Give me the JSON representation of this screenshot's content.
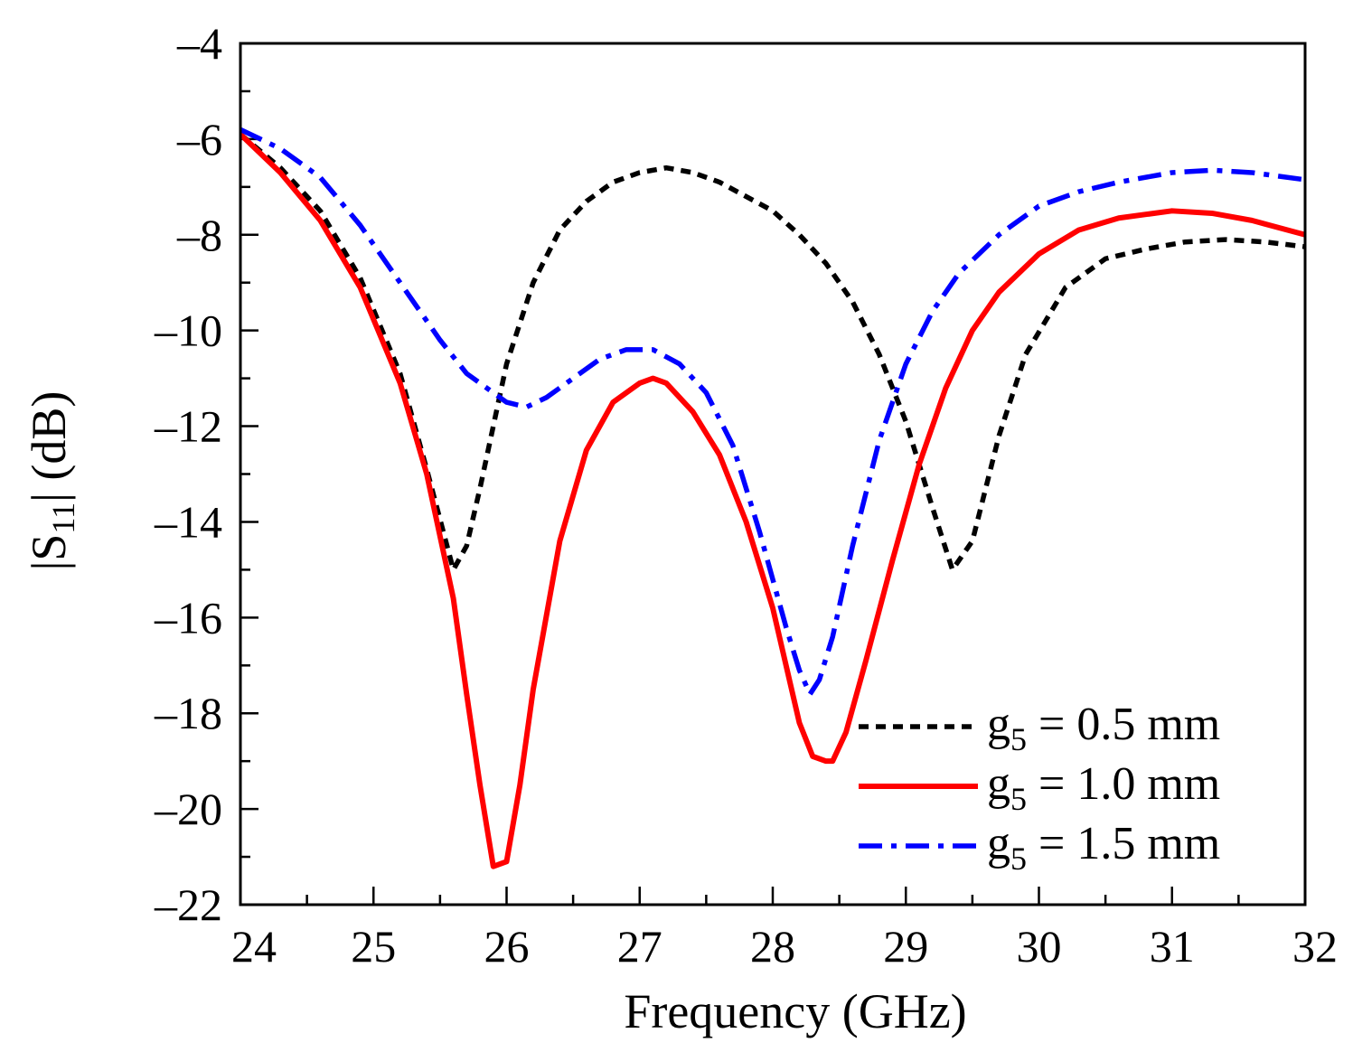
{
  "chart_data": {
    "type": "line",
    "title": "",
    "xlabel": "Frequency (GHz)",
    "ylabel_main": "|S",
    "ylabel_sub": "11",
    "ylabel_tail": "| (dB)",
    "xlim": [
      24,
      32
    ],
    "ylim": [
      -22,
      -4
    ],
    "xticks": [
      24,
      25,
      26,
      27,
      28,
      29,
      30,
      31,
      32
    ],
    "yticks": [
      -4,
      -6,
      -8,
      -10,
      -12,
      -14,
      -16,
      -18,
      -20,
      -22
    ],
    "xtick_labels": [
      "24",
      "25",
      "26",
      "27",
      "28",
      "29",
      "30",
      "31",
      "32"
    ],
    "ytick_labels": [
      "–4",
      "–6",
      "–8",
      "–10",
      "–12",
      "–14",
      "–16",
      "–18",
      "–20",
      "–22"
    ],
    "grid": false,
    "legend_position": "bottom-right",
    "series": [
      {
        "name": "g5 = 0.5 mm",
        "legend_main": "g",
        "legend_sub": "5",
        "legend_tail": " = 0.5 mm",
        "color": "#000000",
        "style": "dotted",
        "x": [
          24,
          24.3,
          24.6,
          24.9,
          25.2,
          25.4,
          25.6,
          25.7,
          25.8,
          25.9,
          26.0,
          26.2,
          26.4,
          26.6,
          26.8,
          27.0,
          27.2,
          27.4,
          27.6,
          27.8,
          28.0,
          28.2,
          28.4,
          28.6,
          28.8,
          29.0,
          29.2,
          29.35,
          29.5,
          29.7,
          29.9,
          30.2,
          30.5,
          30.8,
          31.1,
          31.4,
          31.7,
          32.0
        ],
        "y": [
          -5.9,
          -6.6,
          -7.5,
          -8.9,
          -10.9,
          -12.9,
          -15.0,
          -14.5,
          -13.3,
          -12.0,
          -10.7,
          -9.0,
          -7.9,
          -7.3,
          -6.9,
          -6.7,
          -6.6,
          -6.7,
          -6.9,
          -7.2,
          -7.5,
          -8.0,
          -8.6,
          -9.4,
          -10.5,
          -11.9,
          -13.7,
          -15.0,
          -14.4,
          -12.2,
          -10.5,
          -9.1,
          -8.5,
          -8.3,
          -8.15,
          -8.1,
          -8.15,
          -8.25
        ]
      },
      {
        "name": "g5 = 1.0 mm",
        "legend_main": "g",
        "legend_sub": "5",
        "legend_tail": " = 1.0 mm",
        "color": "#ff0000",
        "style": "solid",
        "x": [
          24,
          24.3,
          24.6,
          24.9,
          25.2,
          25.4,
          25.6,
          25.7,
          25.8,
          25.9,
          26.0,
          26.1,
          26.2,
          26.4,
          26.6,
          26.8,
          27.0,
          27.1,
          27.2,
          27.4,
          27.6,
          27.8,
          28.0,
          28.2,
          28.3,
          28.4,
          28.45,
          28.55,
          28.7,
          28.9,
          29.1,
          29.3,
          29.5,
          29.7,
          30.0,
          30.3,
          30.6,
          31.0,
          31.3,
          31.6,
          32.0
        ],
        "y": [
          -5.9,
          -6.7,
          -7.7,
          -9.1,
          -11.1,
          -13.0,
          -15.6,
          -17.6,
          -19.5,
          -21.2,
          -21.1,
          -19.5,
          -17.5,
          -14.4,
          -12.5,
          -11.5,
          -11.1,
          -11.0,
          -11.1,
          -11.7,
          -12.6,
          -14.0,
          -15.8,
          -18.2,
          -18.9,
          -19.0,
          -19.0,
          -18.4,
          -16.9,
          -14.8,
          -12.8,
          -11.2,
          -10.0,
          -9.2,
          -8.4,
          -7.9,
          -7.65,
          -7.5,
          -7.55,
          -7.7,
          -8.0
        ]
      },
      {
        "name": "g5 = 1.5 mm",
        "legend_main": "g",
        "legend_sub": "5",
        "legend_tail": " = 1.5 mm",
        "color": "#0000ff",
        "style": "dashdot",
        "x": [
          24,
          24.3,
          24.6,
          24.9,
          25.2,
          25.5,
          25.7,
          25.9,
          26.0,
          26.15,
          26.3,
          26.5,
          26.7,
          26.9,
          27.1,
          27.3,
          27.5,
          27.7,
          27.9,
          28.1,
          28.2,
          28.28,
          28.35,
          28.45,
          28.6,
          28.8,
          29.0,
          29.2,
          29.4,
          29.7,
          30.0,
          30.3,
          30.6,
          31.0,
          31.3,
          31.6,
          32.0
        ],
        "y": [
          -5.8,
          -6.2,
          -6.8,
          -7.8,
          -9.0,
          -10.2,
          -10.9,
          -11.3,
          -11.5,
          -11.6,
          -11.4,
          -11.0,
          -10.6,
          -10.4,
          -10.4,
          -10.7,
          -11.3,
          -12.4,
          -14.2,
          -16.2,
          -17.1,
          -17.6,
          -17.3,
          -16.4,
          -14.5,
          -12.3,
          -10.7,
          -9.6,
          -8.8,
          -8.0,
          -7.4,
          -7.1,
          -6.9,
          -6.7,
          -6.65,
          -6.7,
          -6.85
        ]
      }
    ]
  }
}
